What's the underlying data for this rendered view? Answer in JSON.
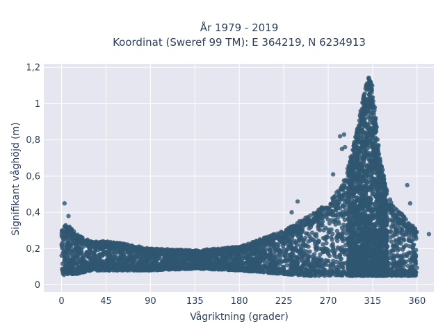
{
  "chart_data": {
    "type": "scatter",
    "title_line1": "År 1979 - 2019",
    "title_line2": "Koordinat (Sweref 99 TM): E 364219, N 6234913",
    "xlabel": "Vågriktning (grader)",
    "ylabel": "Signifikant våghöjd (m)",
    "xlim": [
      -18,
      377
    ],
    "ylim": [
      -0.04,
      1.22
    ],
    "xticks": [
      0,
      45,
      90,
      135,
      180,
      225,
      270,
      315,
      360
    ],
    "xtick_labels": [
      "0",
      "45",
      "90",
      "135",
      "180",
      "225",
      "270",
      "315",
      "360"
    ],
    "yticks": [
      0,
      0.2,
      0.4,
      0.6,
      0.8,
      1.0,
      1.2
    ],
    "ytick_labels": [
      "0",
      "0,2",
      "0,4",
      "0,6",
      "0,8",
      "1",
      "1,2"
    ],
    "grid": true,
    "marker_color": "#2f5670",
    "background_color": "#e5e6ef",
    "envelope": {
      "x": [
        0,
        5,
        15,
        30,
        45,
        60,
        90,
        135,
        180,
        225,
        250,
        270,
        285,
        295,
        300,
        305,
        310,
        313,
        315,
        318,
        322,
        330,
        340,
        350,
        360
      ],
      "y_low": [
        0.05,
        0.06,
        0.06,
        0.08,
        0.08,
        0.08,
        0.08,
        0.09,
        0.08,
        0.06,
        0.05,
        0.05,
        0.05,
        0.05,
        0.05,
        0.05,
        0.05,
        0.05,
        0.05,
        0.05,
        0.05,
        0.05,
        0.05,
        0.05,
        0.05
      ],
      "y_high": [
        0.3,
        0.34,
        0.28,
        0.24,
        0.24,
        0.23,
        0.2,
        0.19,
        0.21,
        0.3,
        0.38,
        0.45,
        0.56,
        0.75,
        0.88,
        1.02,
        1.14,
        1.16,
        1.1,
        0.95,
        0.72,
        0.5,
        0.42,
        0.36,
        0.3
      ]
    },
    "outliers": [
      {
        "x": 3,
        "y": 0.45
      },
      {
        "x": 7,
        "y": 0.38
      },
      {
        "x": 282,
        "y": 0.82
      },
      {
        "x": 286,
        "y": 0.83
      },
      {
        "x": 287,
        "y": 0.76
      },
      {
        "x": 284,
        "y": 0.75
      },
      {
        "x": 239,
        "y": 0.46
      },
      {
        "x": 233,
        "y": 0.4
      },
      {
        "x": 275,
        "y": 0.61
      },
      {
        "x": 372,
        "y": 0.28
      },
      {
        "x": 350,
        "y": 0.55
      },
      {
        "x": 353,
        "y": 0.45
      }
    ]
  }
}
